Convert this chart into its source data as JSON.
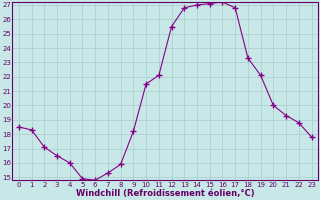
{
  "x": [
    0,
    1,
    2,
    3,
    4,
    5,
    6,
    7,
    8,
    9,
    10,
    11,
    12,
    13,
    14,
    15,
    16,
    17,
    18,
    19,
    20,
    21,
    22,
    23
  ],
  "y": [
    18.5,
    18.3,
    17.1,
    16.5,
    16.0,
    14.9,
    14.8,
    15.3,
    15.9,
    18.2,
    21.5,
    22.1,
    25.5,
    26.8,
    27.0,
    27.1,
    27.2,
    26.8,
    23.3,
    22.1,
    20.0,
    19.3,
    18.8,
    17.8
  ],
  "line_color": "#880088",
  "marker": "+",
  "marker_size": 4,
  "bg_color": "#c8e8e8",
  "grid_color": "#aacccc",
  "xlabel": "Windchill (Refroidissement éolien,°C)",
  "xlabel_color": "#660066",
  "tick_color": "#660066",
  "spine_color": "#660066",
  "ylim": [
    15,
    27
  ],
  "xlim": [
    -0.5,
    23.5
  ],
  "yticks": [
    15,
    16,
    17,
    18,
    19,
    20,
    21,
    22,
    23,
    24,
    25,
    26,
    27
  ],
  "xticks": [
    0,
    1,
    2,
    3,
    4,
    5,
    6,
    7,
    8,
    9,
    10,
    11,
    12,
    13,
    14,
    15,
    16,
    17,
    18,
    19,
    20,
    21,
    22,
    23
  ],
  "tick_fontsize": 5,
  "xlabel_fontsize": 6
}
